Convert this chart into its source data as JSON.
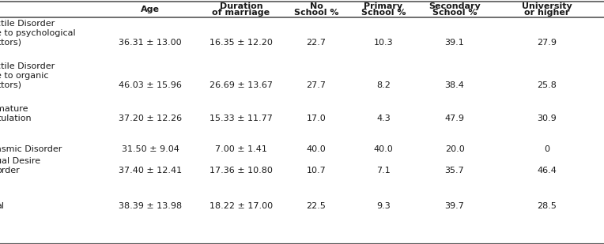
{
  "col_headers_line1": [
    "Age",
    "Duration",
    "No",
    "Primary",
    "Secondary",
    "University"
  ],
  "col_headers_line2": [
    "",
    "of marriage",
    "School %",
    "School %",
    "School %",
    "or higher"
  ],
  "rows": [
    {
      "label_lines": [
        "ctile Disorder",
        "e to psychological",
        "ctors)"
      ],
      "values": [
        "36.31 ± 13.00",
        "16.35 ± 12.20",
        "22.7",
        "10.3",
        "39.1",
        "27.9"
      ]
    },
    {
      "label_lines": [
        "ctile Disorder",
        "e to organic",
        "ctors)"
      ],
      "values": [
        "46.03 ± 15.96",
        "26.69 ± 13.67",
        "27.7",
        "8.2",
        "38.4",
        "25.8"
      ]
    },
    {
      "label_lines": [
        "mature",
        "culation"
      ],
      "values": [
        "37.20 ± 12.26",
        "15.33 ± 11.77",
        "17.0",
        "4.3",
        "47.9",
        "30.9"
      ]
    },
    {
      "label_lines": [
        "asmic Disorder"
      ],
      "values": [
        "31.50 ± 9.04",
        "7.00 ± 1.41",
        "40.0",
        "40.0",
        "20.0",
        "0"
      ]
    },
    {
      "label_lines": [
        "ual Desire",
        "order"
      ],
      "values": [
        "37.40 ± 12.41",
        "17.36 ± 10.80",
        "10.7",
        "7.1",
        "35.7",
        "46.4"
      ]
    },
    {
      "label_lines": [
        "al"
      ],
      "values": [
        "38.39 ± 13.98",
        "18.22 ± 17.00",
        "22.5",
        "9.3",
        "39.7",
        "28.5"
      ]
    }
  ],
  "background_color": "#ffffff",
  "text_color": "#1a1a1a",
  "header_font_size": 8.0,
  "body_font_size": 8.0,
  "line_color": "#999999",
  "line_color_dark": "#555555"
}
